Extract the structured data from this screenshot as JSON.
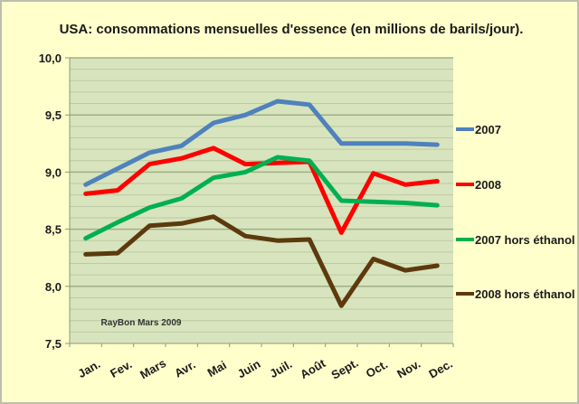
{
  "chart_data": {
    "type": "line",
    "title": "USA: consommations mensuelles d'essence (en millions de barils/jour).",
    "xlabel": "",
    "ylabel": "",
    "categories": [
      "Jan.",
      "Fev.",
      "Mars",
      "Avr.",
      "Mai",
      "Juin",
      "Juil.",
      "Août",
      "Sept.",
      "Oct.",
      "Nov.",
      "Dec."
    ],
    "ylim": [
      7.5,
      10.0
    ],
    "yticks": [
      7.5,
      8.0,
      8.5,
      9.0,
      9.5,
      10.0
    ],
    "ytick_labels": [
      "7,5",
      "8,0",
      "8,5",
      "9,0",
      "9,5",
      "10,0"
    ],
    "minor_grid_step": 0.1,
    "grid": true,
    "legend_position": "right",
    "annotation": "RayBon Mars 2009",
    "series": [
      {
        "name": "2007",
        "color": "#4F81BD",
        "values": [
          8.89,
          9.03,
          9.17,
          9.23,
          9.43,
          9.5,
          9.62,
          9.59,
          9.25,
          9.25,
          9.25,
          9.24
        ]
      },
      {
        "name": "2008",
        "color": "#FF0000",
        "values": [
          8.81,
          8.84,
          9.07,
          9.12,
          9.21,
          9.07,
          9.08,
          9.09,
          8.47,
          8.99,
          8.89,
          8.92
        ]
      },
      {
        "name": "2007 hors éthanol",
        "color": "#00B050",
        "values": [
          8.42,
          8.56,
          8.69,
          8.77,
          8.95,
          9.0,
          9.13,
          9.1,
          8.75,
          8.74,
          8.73,
          8.71
        ]
      },
      {
        "name": "2008 hors éthanol",
        "color": "#5C3A0E",
        "values": [
          8.28,
          8.29,
          8.53,
          8.55,
          8.61,
          8.44,
          8.4,
          8.41,
          7.83,
          8.24,
          8.14,
          8.18
        ]
      }
    ]
  }
}
